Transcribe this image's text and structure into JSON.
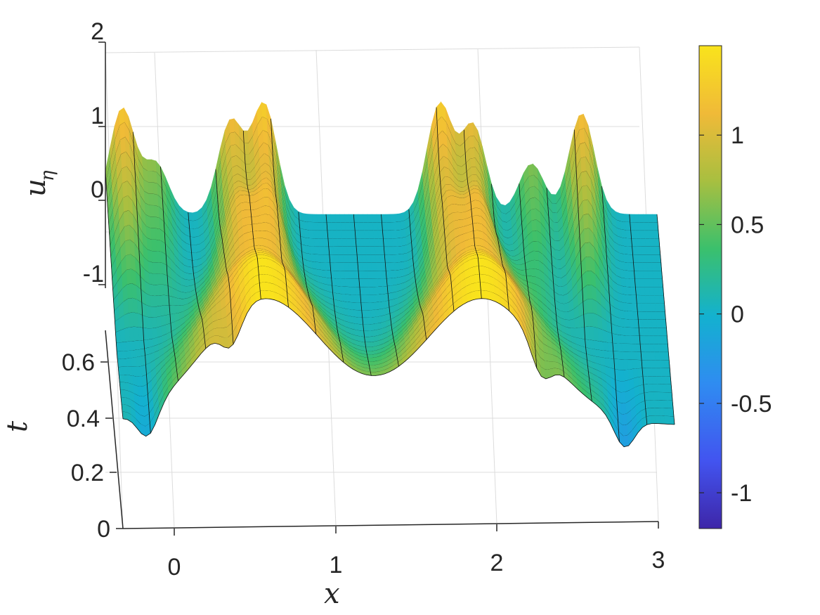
{
  "chart_data": {
    "type": "surface",
    "title": "",
    "xlabel": "x",
    "ylabel": "t",
    "zlabel": "u",
    "zlabel_subscript": "η",
    "x_ticks": [
      "0",
      "1",
      "2",
      "3"
    ],
    "t_ticks": [
      "0",
      "0.2",
      "0.4",
      "0.6"
    ],
    "z_ticks": [
      "2",
      "1",
      "0",
      "-1"
    ],
    "xlim": [
      -0.3,
      3
    ],
    "tlim": [
      0,
      1
    ],
    "zlim": [
      -1,
      2
    ],
    "grid": true,
    "colormap": "parula",
    "colorbar": {
      "ticks": [
        "1",
        "0.5",
        "0",
        "-0.5",
        "-1"
      ],
      "range": [
        -1.2,
        1.5
      ],
      "colors": [
        "#3e26a8",
        "#4254f0",
        "#2f8cf1",
        "#13b1cf",
        "#3bc06c",
        "#a8bf40",
        "#f0ba38",
        "#f9e31c"
      ]
    },
    "surface_description": {
      "t_slices": 26,
      "peaks_x": [
        -0.2,
        0.0,
        0.45,
        0.65,
        1.7,
        1.9,
        2.25,
        2.55
      ],
      "peak_heights": [
        1.25,
        0.6,
        1.1,
        1.3,
        1.3,
        1.05,
        0.6,
        1.2
      ],
      "rising_bands_x": [
        0.55,
        1.85
      ],
      "rising_bands_height": 1.5
    }
  }
}
